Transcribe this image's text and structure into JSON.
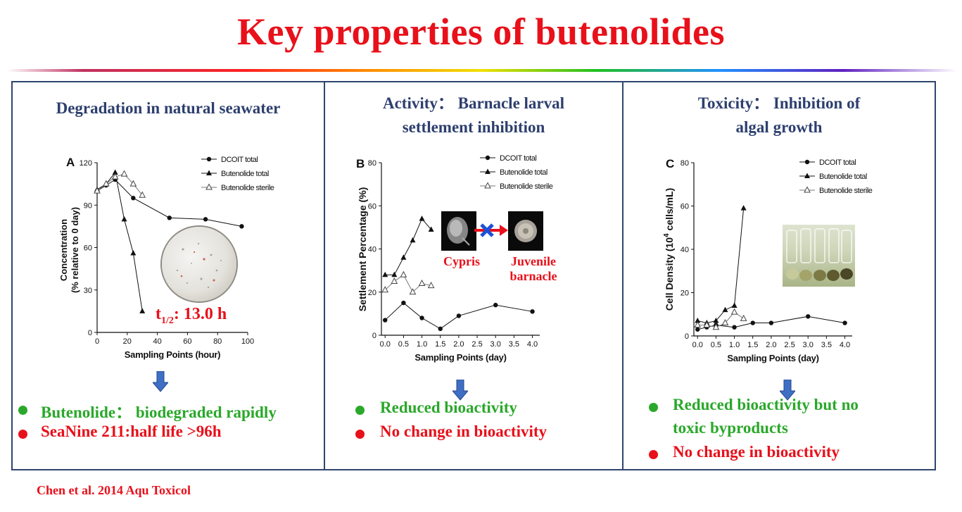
{
  "title": "Key properties of butenolides",
  "citation": "Chen et al. 2014 Aqu Toxicol",
  "panels": {
    "a": {
      "heading": "Degradation in natural seawater",
      "bullets": [
        {
          "text": "Butenolide： biodegraded rapidly",
          "color": "green"
        },
        {
          "text": "SeaNine 211:half life >96h",
          "color": "red"
        }
      ],
      "annotation_prefix": "t",
      "annotation_sub": "1/2",
      "annotation_suffix": ": 13.0 h"
    },
    "b": {
      "heading_line1": "Activity： Barnacle larval",
      "heading_line2": "settlement inhibition",
      "bullets": [
        {
          "text": "Reduced bioactivity",
          "color": "green"
        },
        {
          "text": "No change in bioactivity",
          "color": "red"
        }
      ],
      "cypris_label": "Cypris",
      "juvenile_label_1": "Juvenile",
      "juvenile_label_2": "barnacle"
    },
    "c": {
      "heading_line1": "Toxicity： Inhibition of",
      "heading_line2": "algal growth",
      "bullets": [
        {
          "text": "Reduced bioactivity but no",
          "color": "green"
        },
        {
          "text": "toxic byproducts",
          "color": "green"
        },
        {
          "text": "No change in bioactivity",
          "color": "red"
        }
      ]
    }
  },
  "colors": {
    "title": "#e8101a",
    "heading": "#2d3f6e",
    "green": "#2aa82a",
    "red": "#e8101a",
    "arrow": "#3f6fc4",
    "border": "#2f4470"
  },
  "chart_data": [
    {
      "panel_letter": "A",
      "type": "line",
      "xlabel": "Sampling Points (hour)",
      "ylabel_1": "Concentration",
      "ylabel_2": "(% relative to 0 day)",
      "xlim": [
        0,
        100
      ],
      "ylim": [
        0,
        120
      ],
      "xticks": [
        0,
        20,
        40,
        60,
        80,
        100
      ],
      "yticks": [
        0,
        30,
        60,
        90,
        120
      ],
      "legend": [
        "DCOIT total",
        "Butenolide total",
        "Butenolide sterile"
      ],
      "series": [
        {
          "name": "DCOIT total",
          "marker": "circle",
          "x": [
            0,
            6,
            12,
            24,
            48,
            72,
            96
          ],
          "y": [
            100,
            104,
            108,
            95,
            81,
            80,
            75
          ]
        },
        {
          "name": "Butenolide total",
          "marker": "triangle",
          "x": [
            0,
            6,
            12,
            18,
            24,
            30
          ],
          "y": [
            101,
            105,
            113,
            80,
            56,
            15
          ]
        },
        {
          "name": "Butenolide sterile",
          "marker": "open-triangle",
          "x": [
            0,
            6,
            12,
            18,
            24,
            30
          ],
          "y": [
            100,
            105,
            110,
            112,
            105,
            97
          ]
        }
      ]
    },
    {
      "panel_letter": "B",
      "type": "line",
      "xlabel": "Sampling Points (day)",
      "ylabel": "Settlement Percentage (%)",
      "xlim": [
        -0.1,
        4.2
      ],
      "ylim": [
        0,
        80
      ],
      "xticks": [
        0.0,
        0.5,
        1.0,
        1.5,
        2.0,
        2.5,
        3.0,
        3.5,
        4.0
      ],
      "yticks": [
        0,
        20,
        40,
        60,
        80
      ],
      "legend": [
        "DCOIT total",
        "Butenolide total",
        "Butenolide sterile"
      ],
      "series": [
        {
          "name": "DCOIT total",
          "marker": "circle",
          "x": [
            0,
            0.5,
            1.0,
            1.5,
            2.0,
            3.0,
            4.0
          ],
          "y": [
            7,
            15,
            8,
            3,
            9,
            14,
            11
          ]
        },
        {
          "name": "Butenolide total",
          "marker": "triangle",
          "x": [
            0,
            0.25,
            0.5,
            0.75,
            1.0,
            1.25
          ],
          "y": [
            28,
            28,
            36,
            44,
            54,
            49
          ]
        },
        {
          "name": "Butenolide sterile",
          "marker": "open-triangle",
          "x": [
            0,
            0.25,
            0.5,
            0.75,
            1.0,
            1.25
          ],
          "y": [
            21,
            25,
            28,
            20,
            24,
            23
          ]
        }
      ]
    },
    {
      "panel_letter": "C",
      "type": "line",
      "xlabel": "Sampling Points (day)",
      "ylabel_main": "Cell Density (10",
      "ylabel_sup": "4",
      "ylabel_tail": " cells/mL)",
      "xlim": [
        -0.1,
        4.2
      ],
      "ylim": [
        0,
        80
      ],
      "xticks": [
        0.0,
        0.5,
        1.0,
        1.5,
        2.0,
        2.5,
        3.0,
        3.5,
        4.0
      ],
      "yticks": [
        0,
        20,
        40,
        60,
        80
      ],
      "legend": [
        "DCOIT total",
        "Butenolide total",
        "Butenolide sterile"
      ],
      "series": [
        {
          "name": "DCOIT total",
          "marker": "circle",
          "x": [
            0,
            0.25,
            0.5,
            1.0,
            1.5,
            2.0,
            3.0,
            4.0
          ],
          "y": [
            3,
            4,
            5,
            4,
            6,
            6,
            9,
            6
          ]
        },
        {
          "name": "Butenolide total",
          "marker": "triangle",
          "x": [
            0,
            0.25,
            0.5,
            0.75,
            1.0,
            1.25
          ],
          "y": [
            7,
            6,
            7,
            12,
            14,
            59
          ]
        },
        {
          "name": "Butenolide sterile",
          "marker": "open-triangle",
          "x": [
            0,
            0.25,
            0.5,
            0.75,
            1.0,
            1.25
          ],
          "y": [
            5,
            5,
            4,
            6,
            11,
            8
          ]
        }
      ]
    }
  ]
}
